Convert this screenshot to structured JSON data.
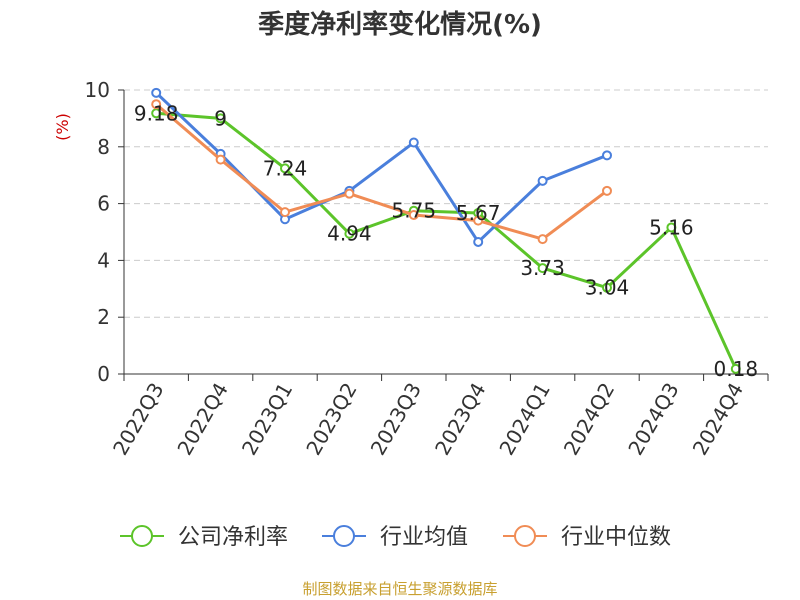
{
  "chart_data": {
    "type": "line",
    "title": "季度净利率变化情况(%)",
    "ylabel": "(%)",
    "xlabel": "",
    "categories": [
      "2022Q3",
      "2022Q4",
      "2023Q1",
      "2023Q2",
      "2023Q3",
      "2023Q4",
      "2024Q1",
      "2024Q2",
      "2024Q3",
      "2024Q4"
    ],
    "ylim": [
      0,
      10
    ],
    "yticks": [
      0,
      2,
      4,
      6,
      8,
      10
    ],
    "grid": true,
    "legend_position": "bottom",
    "series": [
      {
        "name": "公司净利率",
        "color": "#5cc42a",
        "values": [
          9.18,
          9,
          7.24,
          4.94,
          5.75,
          5.67,
          3.73,
          3.04,
          5.16,
          0.18
        ],
        "labels": [
          "9.18",
          "9",
          "7.24",
          "4.94",
          "5.75",
          "5.67",
          "3.73",
          "3.04",
          "5.16",
          "0.18"
        ]
      },
      {
        "name": "行业均值",
        "color": "#4a7fdc",
        "values": [
          9.9,
          7.75,
          5.45,
          6.45,
          8.15,
          4.65,
          6.8,
          7.7,
          null,
          null
        ]
      },
      {
        "name": "行业中位数",
        "color": "#f08c55",
        "values": [
          9.5,
          7.55,
          5.7,
          6.35,
          5.6,
          5.4,
          4.75,
          6.45,
          null,
          null
        ]
      }
    ]
  },
  "footer": "制图数据来自恒生聚源数据库"
}
